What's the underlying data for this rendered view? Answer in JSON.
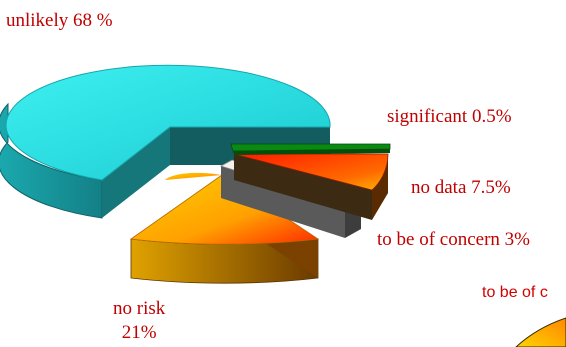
{
  "chart_data": {
    "type": "pie",
    "style": "3d-exploded",
    "slices": [
      {
        "label": "unlikely",
        "value_text": "68 %",
        "value": 68,
        "color": "#22d8dd"
      },
      {
        "label": "significant",
        "value_text": "0.5%",
        "value": 0.5,
        "color": "#0a8a12"
      },
      {
        "label": "no data",
        "value_text": "7.5%",
        "value": 7.5,
        "color": "#ff3b00"
      },
      {
        "label": "to be of concern",
        "value_text": "3%",
        "value": 3,
        "color": "#f2f0ea"
      },
      {
        "label": "no risk",
        "value_text": "21%",
        "value": 21,
        "color": "#ffb000"
      }
    ],
    "label_colors": {
      "text": "#c00000"
    },
    "cut_off_label": "to be of c"
  }
}
